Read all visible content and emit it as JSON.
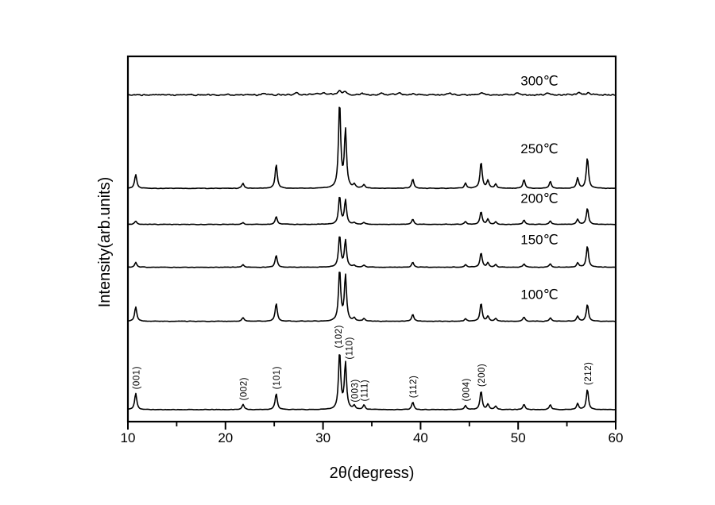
{
  "figure": {
    "kind": "XRD powder diffraction patterns stacked by annealing temperature",
    "background": "#ffffff",
    "line_color": "#000000"
  },
  "chart_data": {
    "type": "line",
    "subtype": "xrd-stacked-patterns",
    "title": "",
    "xlabel": "2θ(degress)",
    "ylabel": "Intensity(arb.units)",
    "xlim": [
      10,
      60
    ],
    "ylim_arb_units": [
      0,
      426
    ],
    "x_major_ticks": [
      10,
      20,
      30,
      40,
      50,
      60
    ],
    "x_minor_ticks": [
      15,
      25,
      35,
      45,
      55
    ],
    "y_ticks": [],
    "grid": false,
    "legend_position": "inline-labels-right",
    "intensity_note": "arbitrary units; 100 = strongest peak of 250℃ trace",
    "series": [
      {
        "name": "as-prepared",
        "label": "",
        "baseline": 14,
        "label_offset": 0,
        "noise": 0.4,
        "peaks": {
          "two_theta": [
            10.8,
            21.8,
            25.2,
            31.7,
            32.3,
            33.2,
            34.2,
            39.2,
            44.6,
            46.2,
            46.9,
            47.7,
            50.6,
            53.3,
            56.1,
            57.1
          ],
          "intensity": [
            19,
            6,
            19,
            67,
            54,
            4,
            5,
            9,
            5,
            22,
            6,
            4,
            6,
            6,
            7,
            24
          ]
        }
      },
      {
        "name": "100C",
        "label": "100℃",
        "baseline": 117,
        "label_offset": 26,
        "noise": 0.4,
        "peaks": {
          "two_theta": [
            10.8,
            21.8,
            25.2,
            31.7,
            32.3,
            33.2,
            34.2,
            39.2,
            44.6,
            46.2,
            46.9,
            47.7,
            50.6,
            53.3,
            56.1,
            57.1
          ],
          "intensity": [
            17,
            4,
            21,
            60,
            53,
            3,
            3,
            8,
            3,
            21,
            6,
            3,
            5,
            4,
            6,
            20
          ]
        }
      },
      {
        "name": "150C",
        "label": "150℃",
        "baseline": 180,
        "label_offset": 27,
        "noise": 0.4,
        "peaks": {
          "two_theta": [
            10.8,
            21.8,
            25.2,
            31.7,
            32.3,
            33.2,
            34.2,
            39.2,
            44.6,
            46.2,
            46.9,
            47.7,
            50.6,
            53.3,
            56.1,
            57.1
          ],
          "intensity": [
            6,
            3,
            14,
            37,
            31,
            2,
            2,
            6,
            3,
            17,
            5,
            3,
            4,
            4,
            5,
            25
          ]
        }
      },
      {
        "name": "200C",
        "label": "200℃",
        "baseline": 230,
        "label_offset": 25,
        "noise": 0.4,
        "peaks": {
          "two_theta": [
            10.8,
            21.8,
            25.2,
            31.7,
            32.3,
            33.2,
            34.2,
            39.2,
            44.6,
            46.2,
            46.9,
            47.7,
            50.6,
            53.3,
            56.1,
            57.1
          ],
          "intensity": [
            4,
            2,
            9,
            33,
            28,
            2,
            2,
            6,
            3,
            15,
            6,
            3,
            5,
            4,
            6,
            19
          ]
        }
      },
      {
        "name": "250C",
        "label": "250℃",
        "baseline": 272,
        "label_offset": 41,
        "noise": 0.4,
        "peaks": {
          "two_theta": [
            10.8,
            21.8,
            25.2,
            31.7,
            32.3,
            33.2,
            34.2,
            39.2,
            44.6,
            46.2,
            46.9,
            47.7,
            50.6,
            53.3,
            56.1,
            57.1
          ],
          "intensity": [
            16,
            6,
            28,
            100,
            67,
            4,
            4,
            11,
            6,
            31,
            9,
            5,
            10,
            8,
            12,
            36
          ]
        }
      },
      {
        "name": "300C",
        "label": "300℃",
        "baseline": 381,
        "label_offset": 11,
        "noise": 1.2,
        "peak_width_deg": 0.2,
        "peaks": {
          "two_theta": [
            24.0,
            27.2,
            29.5,
            30.1,
            31.7,
            32.3,
            34.0,
            36.0,
            37.8,
            39.2,
            43.0,
            46.3,
            50.0,
            53.0,
            56.2,
            57.2
          ],
          "intensity": [
            2,
            3,
            2,
            2,
            5,
            3,
            2,
            2,
            2,
            2,
            2,
            3,
            2,
            2,
            3,
            3
          ]
        }
      }
    ],
    "annotations": [
      {
        "text": "(001)",
        "two_theta": 10.8,
        "dx": 0
      },
      {
        "text": "(002)",
        "two_theta": 21.8,
        "dx": 0
      },
      {
        "text": "(101)",
        "two_theta": 25.2,
        "dx": 0
      },
      {
        "text": "(102)",
        "two_theta": 31.7,
        "dx": -2
      },
      {
        "text": "(110)",
        "two_theta": 32.3,
        "dx": 4
      },
      {
        "text": "(003)",
        "two_theta": 33.2,
        "dx": 0
      },
      {
        "text": "(111)",
        "two_theta": 34.2,
        "dx": 0
      },
      {
        "text": "(112)",
        "two_theta": 39.2,
        "dx": 0
      },
      {
        "text": "(004)",
        "two_theta": 44.6,
        "dx": 0
      },
      {
        "text": "(200)",
        "two_theta": 46.2,
        "dx": 0
      },
      {
        "text": "(212)",
        "two_theta": 57.1,
        "dx": 0
      }
    ]
  }
}
